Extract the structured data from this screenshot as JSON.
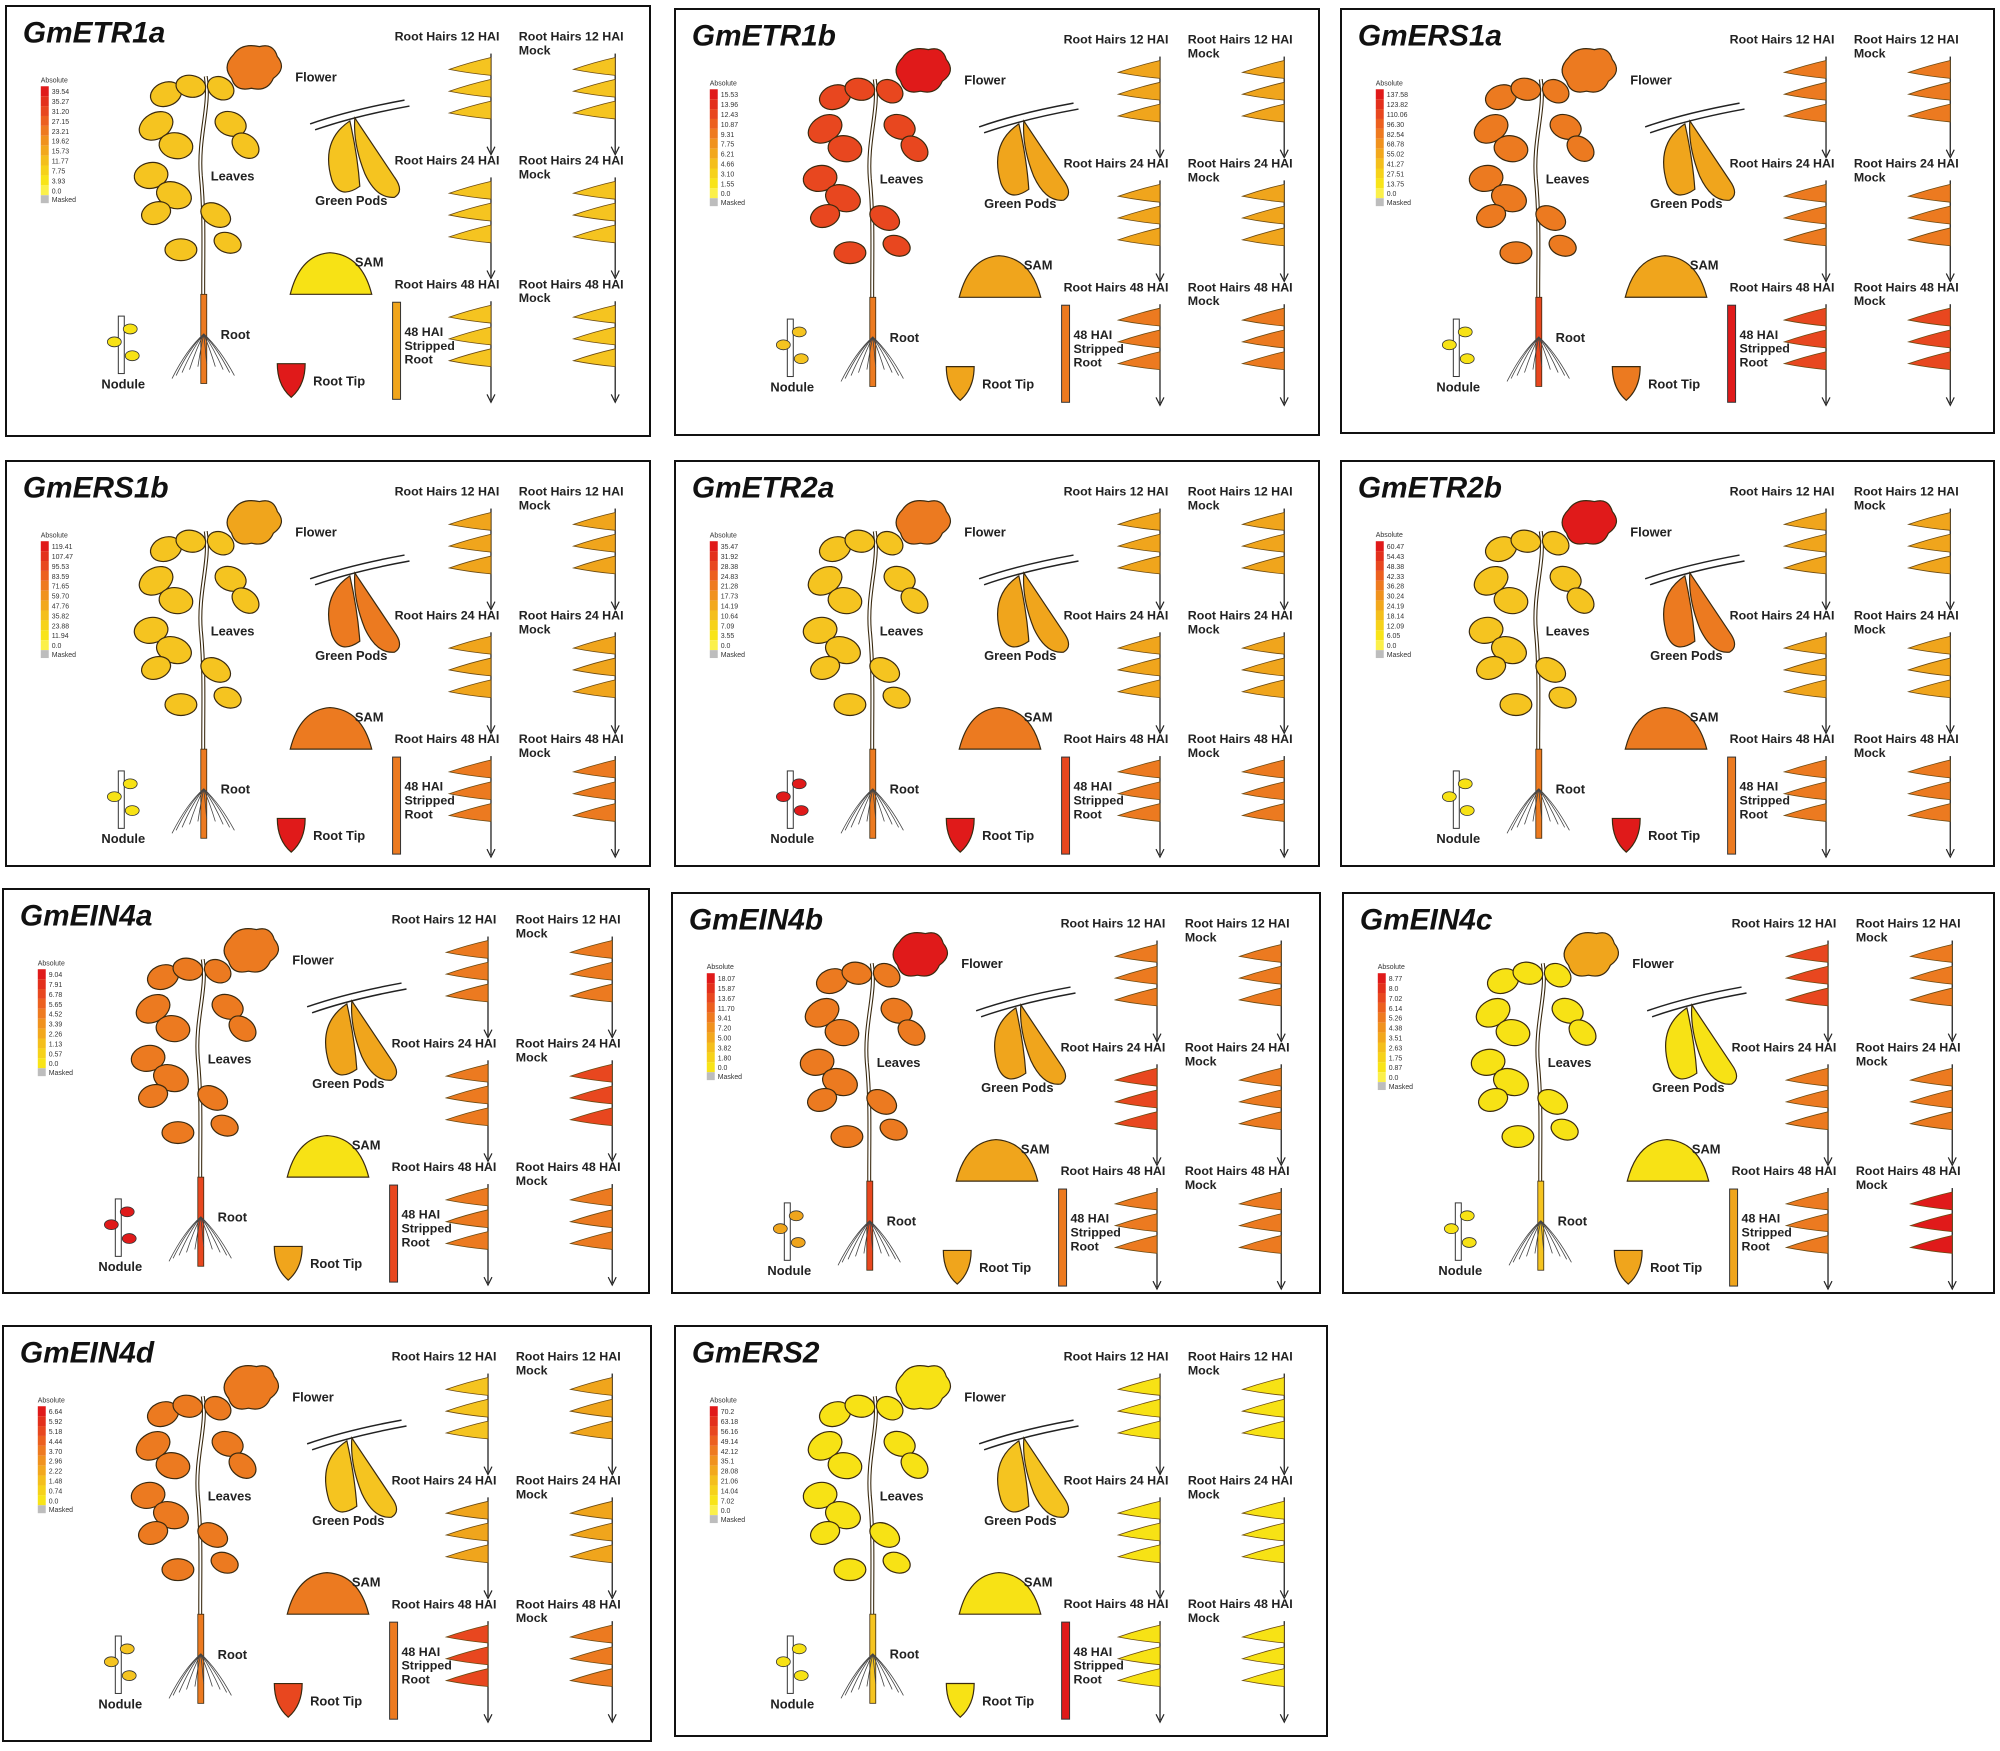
{
  "labels": {
    "flower": "Flower",
    "leaves": "Leaves",
    "green_pods": "Green Pods",
    "sam": "SAM",
    "root": "Root",
    "nodule": "Nodule",
    "root_tip": "Root Tip",
    "rh12": "Root Hairs 12 HAI",
    "rh24": "Root Hairs 24 HAI",
    "rh48": "Root Hairs 48 HAI",
    "mock": "Mock",
    "stripped_1": "48 HAI",
    "stripped_2": "Stripped",
    "stripped_3": "Root",
    "legend_head": "Absolute",
    "legend_masked": "Masked"
  },
  "colors": {
    "Y": "#f7e215",
    "y": "#f5c420",
    "o": "#f0a51c",
    "O": "#ec7a20",
    "r": "#e8471f",
    "R": "#e01a1a"
  },
  "panels": [
    {
      "name": "GmETR1a",
      "legend": [
        "39.54",
        "35.27",
        "31.20",
        "27.15",
        "23.21",
        "19.62",
        "15.73",
        "11.77",
        "7.75",
        "3.93",
        "0.0"
      ],
      "c": {
        "flower": "O",
        "leaves": "y",
        "pods": "y",
        "sam": "Y",
        "root": "O",
        "nodule": "Y",
        "tip": "R",
        "strip": "o",
        "rh12": "y",
        "rh12m": "y",
        "rh24": "y",
        "rh24m": "y",
        "rh48": "y",
        "rh48m": "y"
      }
    },
    {
      "name": "GmETR1b",
      "legend": [
        "15.53",
        "13.96",
        "12.43",
        "10.87",
        "9.31",
        "7.75",
        "6.21",
        "4.66",
        "3.10",
        "1.55",
        "0.0"
      ],
      "c": {
        "flower": "R",
        "leaves": "r",
        "pods": "o",
        "sam": "o",
        "root": "O",
        "nodule": "y",
        "tip": "o",
        "strip": "O",
        "rh12": "o",
        "rh12m": "o",
        "rh24": "o",
        "rh24m": "o",
        "rh48": "O",
        "rh48m": "O"
      }
    },
    {
      "name": "GmERS1a",
      "legend": [
        "137.58",
        "123.82",
        "110.06",
        "96.30",
        "82.54",
        "68.78",
        "55.02",
        "41.27",
        "27.51",
        "13.75",
        "0.0"
      ],
      "c": {
        "flower": "O",
        "leaves": "O",
        "pods": "o",
        "sam": "o",
        "root": "r",
        "nodule": "Y",
        "tip": "O",
        "strip": "R",
        "rh12": "O",
        "rh12m": "O",
        "rh24": "O",
        "rh24m": "O",
        "rh48": "r",
        "rh48m": "r"
      }
    },
    {
      "name": "GmERS1b",
      "legend": [
        "119.41",
        "107.47",
        "95.53",
        "83.59",
        "71.65",
        "59.70",
        "47.76",
        "35.82",
        "23.88",
        "11.94",
        "0.0"
      ],
      "c": {
        "flower": "o",
        "leaves": "y",
        "pods": "O",
        "sam": "O",
        "root": "O",
        "nodule": "Y",
        "tip": "R",
        "strip": "O",
        "rh12": "o",
        "rh12m": "o",
        "rh24": "o",
        "rh24m": "o",
        "rh48": "O",
        "rh48m": "O"
      }
    },
    {
      "name": "GmETR2a",
      "legend": [
        "35.47",
        "31.92",
        "28.38",
        "24.83",
        "21.28",
        "17.73",
        "14.19",
        "10.64",
        "7.09",
        "3.55",
        "0.0"
      ],
      "c": {
        "flower": "O",
        "leaves": "y",
        "pods": "o",
        "sam": "O",
        "root": "O",
        "nodule": "R",
        "tip": "R",
        "strip": "r",
        "rh12": "o",
        "rh12m": "o",
        "rh24": "o",
        "rh24m": "o",
        "rh48": "O",
        "rh48m": "O"
      }
    },
    {
      "name": "GmETR2b",
      "legend": [
        "60.47",
        "54.43",
        "48.38",
        "42.33",
        "36.28",
        "30.24",
        "24.19",
        "18.14",
        "12.09",
        "6.05",
        "0.0"
      ],
      "c": {
        "flower": "R",
        "leaves": "y",
        "pods": "O",
        "sam": "O",
        "root": "O",
        "nodule": "Y",
        "tip": "R",
        "strip": "O",
        "rh12": "o",
        "rh12m": "o",
        "rh24": "o",
        "rh24m": "o",
        "rh48": "O",
        "rh48m": "O"
      }
    },
    {
      "name": "GmEIN4a",
      "legend": [
        "9.04",
        "7.91",
        "6.78",
        "5.65",
        "4.52",
        "3.39",
        "2.26",
        "1.13",
        "0.57",
        "0.0"
      ],
      "c": {
        "flower": "O",
        "leaves": "O",
        "pods": "o",
        "sam": "Y",
        "root": "r",
        "nodule": "R",
        "tip": "o",
        "strip": "r",
        "rh12": "O",
        "rh12m": "O",
        "rh24": "O",
        "rh24m": "r",
        "rh48": "O",
        "rh48m": "O"
      }
    },
    {
      "name": "GmEIN4b",
      "legend": [
        "18.07",
        "15.87",
        "13.67",
        "11.70",
        "9.41",
        "7.20",
        "5.00",
        "3.82",
        "1.80",
        "0.0"
      ],
      "c": {
        "flower": "R",
        "leaves": "O",
        "pods": "o",
        "sam": "o",
        "root": "r",
        "nodule": "o",
        "tip": "o",
        "strip": "O",
        "rh12": "O",
        "rh12m": "O",
        "rh24": "r",
        "rh24m": "O",
        "rh48": "O",
        "rh48m": "O"
      }
    },
    {
      "name": "GmEIN4c",
      "legend": [
        "8.77",
        "8.0",
        "7.02",
        "6.14",
        "5.26",
        "4.38",
        "3.51",
        "2.63",
        "1.75",
        "0.87",
        "0.0"
      ],
      "c": {
        "flower": "o",
        "leaves": "Y",
        "pods": "Y",
        "sam": "Y",
        "root": "y",
        "nodule": "Y",
        "tip": "o",
        "strip": "o",
        "rh12": "r",
        "rh12m": "O",
        "rh24": "O",
        "rh24m": "O",
        "rh48": "O",
        "rh48m": "R"
      }
    },
    {
      "name": "GmEIN4d",
      "legend": [
        "6.64",
        "5.92",
        "5.18",
        "4.44",
        "3.70",
        "2.96",
        "2.22",
        "1.48",
        "0.74",
        "0.0"
      ],
      "c": {
        "flower": "O",
        "leaves": "O",
        "pods": "y",
        "sam": "O",
        "root": "O",
        "nodule": "y",
        "tip": "r",
        "strip": "O",
        "rh12": "y",
        "rh12m": "o",
        "rh24": "o",
        "rh24m": "o",
        "rh48": "r",
        "rh48m": "O"
      }
    },
    {
      "name": "GmERS2",
      "legend": [
        "70.2",
        "63.18",
        "56.16",
        "49.14",
        "42.12",
        "35.1",
        "28.08",
        "21.06",
        "14.04",
        "7.02",
        "0.0"
      ],
      "c": {
        "flower": "Y",
        "leaves": "Y",
        "pods": "y",
        "sam": "Y",
        "root": "y",
        "nodule": "Y",
        "tip": "Y",
        "strip": "R",
        "rh12": "Y",
        "rh12m": "Y",
        "rh24": "Y",
        "rh24m": "Y",
        "rh48": "Y",
        "rh48m": "Y"
      }
    }
  ]
}
